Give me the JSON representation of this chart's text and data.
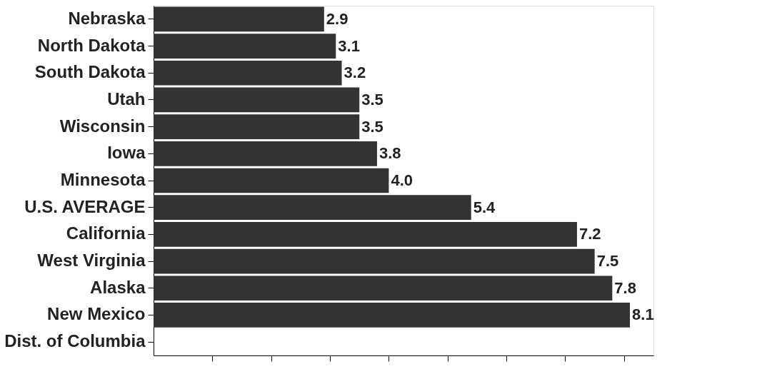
{
  "chart_data": {
    "type": "bar",
    "orientation": "horizontal",
    "categories": [
      "Nebraska",
      "North Dakota",
      "South Dakota",
      "Utah",
      "Wisconsin",
      "Iowa",
      "Minnesota",
      "U.S. AVERAGE",
      "California",
      "West Virginia",
      "Alaska",
      "New Mexico",
      "Dist. of Columbia"
    ],
    "values": [
      2.9,
      3.1,
      3.2,
      3.5,
      3.5,
      3.8,
      4.0,
      5.4,
      7.2,
      7.5,
      7.8,
      8.1,
      null
    ],
    "value_labels": [
      "2.9",
      "3.1",
      "3.2",
      "3.5",
      "3.5",
      "3.8",
      "4.0",
      "5.4",
      "7.2",
      "7.5",
      "7.8",
      "8.1",
      null
    ],
    "color": "#333333",
    "xlim": [
      0,
      8.5
    ],
    "xticks": [
      {
        "value": 1,
        "label": null
      },
      {
        "value": 2,
        "label": null
      },
      {
        "value": 3,
        "label": null
      },
      {
        "value": 4,
        "label": null
      },
      {
        "value": 5,
        "label": null
      },
      {
        "value": 6,
        "label": null
      },
      {
        "value": 7,
        "label": null
      },
      {
        "value": 8,
        "label": null
      }
    ],
    "tick_labels": "y",
    "grid": false
  }
}
